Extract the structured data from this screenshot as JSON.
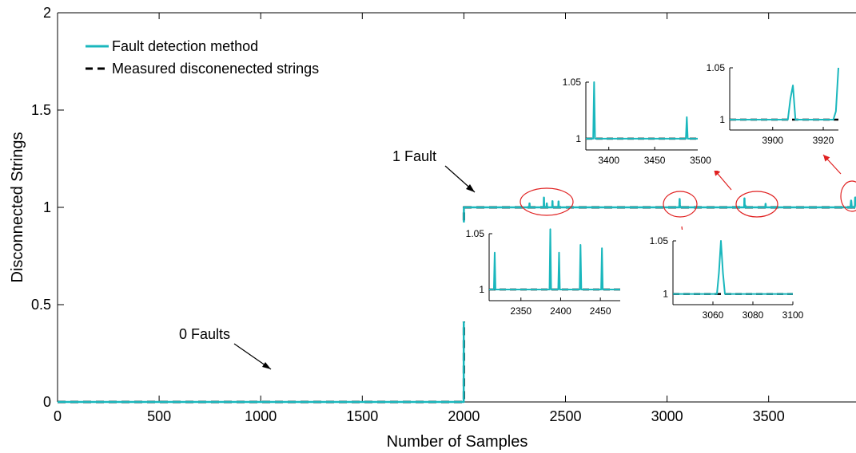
{
  "colors": {
    "fault_detection": "#1ab7bd",
    "measured": "#000000",
    "annotation": "#e02020"
  },
  "chart_data": [
    {
      "type": "line",
      "xlabel": "Number of Samples",
      "ylabel": "Disconnected Strings",
      "xlim": [
        0,
        3930
      ],
      "ylim": [
        0,
        2
      ],
      "xticks": [
        0,
        500,
        1000,
        1500,
        2000,
        2500,
        3000,
        3500
      ],
      "yticks": [
        0,
        0.5,
        1,
        1.5,
        2
      ],
      "xtick_labels": [
        "0",
        "500",
        "1000",
        "1500",
        "2000",
        "2500",
        "3000",
        "3500"
      ],
      "ytick_labels": [
        "0",
        "0.5",
        "1",
        "1.5",
        "2"
      ],
      "grid": false,
      "legend_position": "top-left",
      "series": [
        {
          "name": "Fault detection method",
          "style": "solid",
          "x": [
            0,
            1999,
            2000,
            2001,
            2322,
            2323,
            2324,
            2393,
            2394,
            2395,
            2407,
            2408,
            2409,
            2435,
            2436,
            2437,
            2465,
            2466,
            2467,
            3060,
            3061,
            3062,
            3063,
            3064,
            3070,
            3380,
            3381,
            3382,
            3384,
            3385,
            3386,
            3484,
            3485,
            3486,
            3900,
            3903,
            3906,
            3909,
            3912,
            3922,
            3923,
            3924,
            3925,
            3926,
            3930
          ],
          "y": [
            0,
            0,
            1,
            1,
            1,
            1.02,
            1,
            1,
            1.05,
            1,
            1,
            1.02,
            1,
            1,
            1.032,
            1,
            1,
            1.03,
            1,
            1,
            1.015,
            1.043,
            1.015,
            1,
            1,
            1,
            1.046,
            1,
            1,
            1.01,
            1,
            1,
            1.018,
            1,
            1,
            1,
            1.035,
            1,
            1,
            1,
            1,
            1.005,
            1.01,
            1.05,
            1.05
          ]
        },
        {
          "name": "Measured disconenected strings",
          "style": "dashed",
          "x": [
            0,
            2000,
            2000,
            3930
          ],
          "y": [
            0,
            0,
            1,
            1
          ]
        }
      ],
      "legend": [
        {
          "label": "Fault detection method",
          "style": "solid"
        },
        {
          "label": "Measured disconenected strings",
          "style": "dashed"
        }
      ],
      "annotations": [
        {
          "text": "0 Faults",
          "points_to": [
            1060,
            0.09
          ]
        },
        {
          "text": "1 Fault",
          "points_to": [
            2030,
            1.07
          ]
        }
      ]
    },
    {
      "type": "line",
      "inset": "2300-2470",
      "xlim": [
        2310,
        2475
      ],
      "ylim": [
        0.99,
        1.05
      ],
      "xticks": [
        2350,
        2400,
        2450
      ],
      "xtick_labels": [
        "2350",
        "2400",
        "2450"
      ],
      "yticks": [
        1,
        1.05
      ],
      "ytick_labels": [
        "1",
        "1.05"
      ],
      "series": [
        {
          "name": "Fault detection method",
          "style": "solid",
          "x": [
            2310,
            2316,
            2317,
            2318,
            2386,
            2387,
            2388,
            2397,
            2398,
            2399,
            2424,
            2425,
            2426,
            2451,
            2452,
            2453,
            2475
          ],
          "y": [
            1,
            1,
            1.033,
            1,
            1,
            1.054,
            1,
            1,
            1.033,
            1,
            1,
            1.04,
            1,
            1,
            1.037,
            1,
            1
          ]
        },
        {
          "name": "Measured disconenected strings",
          "style": "dashed",
          "x": [
            2310,
            2475
          ],
          "y": [
            1,
            1
          ]
        }
      ]
    },
    {
      "type": "line",
      "inset": "3040-3100",
      "xlim": [
        3040,
        3100
      ],
      "ylim": [
        0.99,
        1.05
      ],
      "xticks": [
        3060,
        3080,
        3100
      ],
      "xtick_labels": [
        "3060",
        "3080",
        "3100"
      ],
      "yticks": [
        1,
        1.05
      ],
      "ytick_labels": [
        "1",
        "1.05"
      ],
      "series": [
        {
          "name": "Fault detection method",
          "style": "solid",
          "x": [
            3040,
            3062,
            3063,
            3064,
            3065,
            3066,
            3100
          ],
          "y": [
            1,
            1,
            1.02,
            1.05,
            1.02,
            1,
            1
          ]
        },
        {
          "name": "Measured disconenected strings",
          "style": "dashed",
          "x": [
            3040,
            3100
          ],
          "y": [
            1,
            1
          ]
        }
      ]
    },
    {
      "type": "line",
      "inset": "3370-3510",
      "xlim": [
        3375,
        3510
      ],
      "ylim": [
        0.99,
        1.05
      ],
      "xticks": [
        3400,
        3450,
        3500
      ],
      "xtick_labels": [
        "3400",
        "3450",
        "3500"
      ],
      "yticks": [
        1,
        1.05
      ],
      "ytick_labels": [
        "1",
        "1.05"
      ],
      "series": [
        {
          "name": "Fault detection method",
          "style": "solid",
          "x": [
            3375,
            3383,
            3384,
            3385,
            3484,
            3485,
            3486,
            3510
          ],
          "y": [
            1,
            1,
            1.05,
            1,
            1,
            1.019,
            1,
            1
          ]
        },
        {
          "name": "Measured disconenected strings",
          "style": "dashed",
          "x": [
            3375,
            3510
          ],
          "y": [
            1,
            1
          ]
        }
      ]
    },
    {
      "type": "line",
      "inset": "3880-3926",
      "xlim": [
        3883,
        3926
      ],
      "ylim": [
        0.99,
        1.05
      ],
      "xticks": [
        3900,
        3920
      ],
      "xtick_labels": [
        "3900",
        "3920"
      ],
      "yticks": [
        1,
        1.05
      ],
      "ytick_labels": [
        "1",
        "1.05"
      ],
      "series": [
        {
          "name": "Fault detection method",
          "style": "solid",
          "x": [
            3883,
            3906,
            3907,
            3908,
            3909,
            3924,
            3925,
            3926
          ],
          "y": [
            1,
            1,
            1.02,
            1.033,
            1,
            1,
            1.008,
            1.05
          ]
        },
        {
          "name": "Measured disconenected strings",
          "style": "dashed",
          "x": [
            3883,
            3926
          ],
          "y": [
            1,
            1
          ]
        }
      ]
    }
  ]
}
